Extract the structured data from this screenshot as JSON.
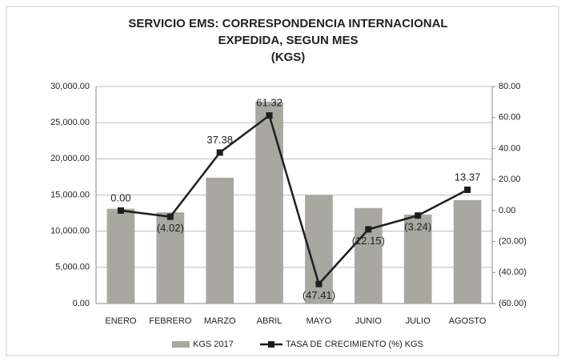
{
  "chart_data": {
    "type": "bar+line",
    "title": [
      "SERVICIO EMS: CORRESPONDENCIA INTERNACIONAL",
      "EXPEDIDA, SEGUN MES",
      "(KGS)"
    ],
    "categories": [
      "ENERO",
      "FEBRERO",
      "MARZO",
      "ABRIL",
      "MAYO",
      "JUNIO",
      "JULIO",
      "AGOSTO"
    ],
    "series": [
      {
        "name": "KGS 2017",
        "type": "bar",
        "color": "#a8a8a0",
        "values": [
          13100,
          12600,
          17400,
          27900,
          15000,
          13200,
          12300,
          14300
        ]
      },
      {
        "name": "TASA DE CRECIMIENTO  (%) KGS",
        "type": "line",
        "axis": "y2",
        "color": "#1e1e1e",
        "values": [
          0.0,
          -4.02,
          37.38,
          61.32,
          -47.41,
          -12.15,
          -3.24,
          13.37
        ],
        "value_labels": [
          "0.00",
          "(4.02)",
          "37.38",
          "61.32",
          "(47.41)",
          "(12.15)",
          "(3.24)",
          "13.37"
        ]
      }
    ],
    "ylim": [
      0,
      30000
    ],
    "yticks": [
      {
        "value": 0,
        "label": "0.00"
      },
      {
        "value": 5000,
        "label": "5,000.00"
      },
      {
        "value": 10000,
        "label": "10,000.00"
      },
      {
        "value": 15000,
        "label": "15,000.00"
      },
      {
        "value": 20000,
        "label": "20,000.00"
      },
      {
        "value": 25000,
        "label": "25,000.00"
      },
      {
        "value": 30000,
        "label": "30,000.00"
      }
    ],
    "y2lim": [
      -60,
      80
    ],
    "y2ticks": [
      {
        "value": -60,
        "label": "(60.00)"
      },
      {
        "value": -40,
        "label": "(40.00)"
      },
      {
        "value": -20,
        "label": "(20.00)"
      },
      {
        "value": 0,
        "label": "0.00"
      },
      {
        "value": 20,
        "label": "20.00"
      },
      {
        "value": 40,
        "label": "40.00"
      },
      {
        "value": 60,
        "label": "60.00"
      },
      {
        "value": 80,
        "label": "80.00"
      }
    ],
    "grid": true,
    "legend": "bottom"
  }
}
